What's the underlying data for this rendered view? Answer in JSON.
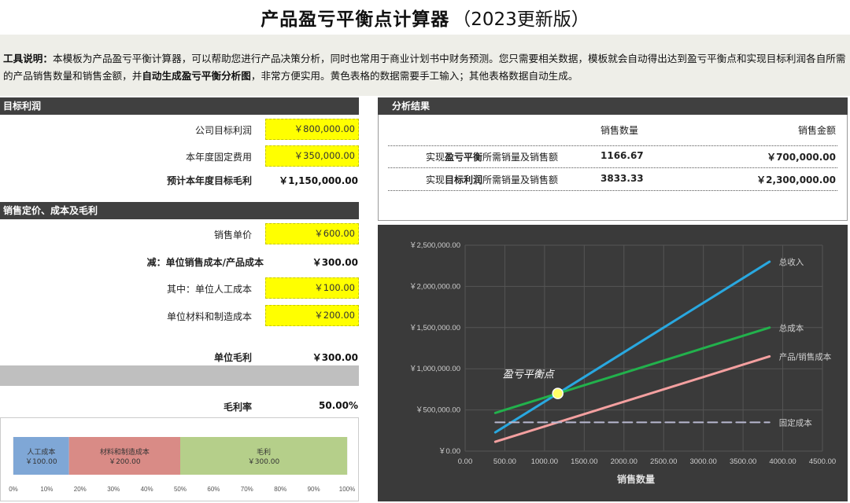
{
  "header": {
    "title_main": "产品盈亏平衡点计算器",
    "title_sub": "（2023更新版）"
  },
  "description": {
    "label": "工具说明：",
    "text1": "本模板为产品盈亏平衡计算器，可以帮助您进行产品决策分析，同时也常用于商业计划书中财务预测。您只需要相关数据，模板就会自动得出达到盈亏平衡点和实现目标利润各自所需的产品销售数量和销售金额，并",
    "emph": "自动生成盈亏平衡分析图",
    "text2": "，非常方便实用。黄色表格的数据需要手工输入；其他表格数据自动生成。"
  },
  "target_profit": {
    "header": "目标利润",
    "company_target_label": "公司目标利润",
    "company_target_value": "￥800,000.00",
    "fixed_cost_label": "本年度固定费用",
    "fixed_cost_value": "￥350,000.00",
    "gross_target_label": "预计本年度目标毛利",
    "gross_target_value": "￥1,150,000.00"
  },
  "pricing": {
    "header": "销售定价、成本及毛利",
    "price_label": "销售单价",
    "price_value": "￥600.00",
    "unit_cost_label": "减：单位销售成本/产品成本",
    "unit_cost_value": "￥300.00",
    "labor_label": "其中：单位人工成本",
    "labor_value": "￥100.00",
    "material_label": "单位材料和制造成本",
    "material_value": "￥200.00",
    "unit_margin_label": "单位毛利",
    "unit_margin_value": "￥300.00",
    "margin_rate_label": "毛利率",
    "margin_rate_value": "50.00%"
  },
  "results": {
    "header": "分析结果",
    "col_qty": "销售数量",
    "col_amount": "销售金额",
    "rows": [
      {
        "label_pre": "实现",
        "label_emph": "盈亏平衡",
        "label_post": "所需销量及销售额",
        "qty": "1166.67",
        "amount": "￥700,000.00"
      },
      {
        "label_pre": "实现",
        "label_emph": "目标利润",
        "label_post": "所需销量及销售额",
        "qty": "3833.33",
        "amount": "￥2,300,000.00"
      }
    ]
  },
  "chart_data": [
    {
      "type": "line",
      "title": "",
      "xlabel": "销售数量",
      "ylabel": "",
      "xlim": [
        0,
        4500
      ],
      "ylim": [
        0,
        2500000
      ],
      "x_ticks": [
        "0.00",
        "500.00",
        "1000.00",
        "1500.00",
        "2000.00",
        "2500.00",
        "3000.00",
        "3500.00",
        "4000.00",
        "4500.00"
      ],
      "y_ticks": [
        "￥0.00",
        "￥500,000.00",
        "￥1,000,000.00",
        "￥1,500,000.00",
        "￥2,000,000.00",
        "￥2,500,000.00"
      ],
      "grid": true,
      "series": [
        {
          "name": "总收入",
          "color": "#29a8e0",
          "points": [
            [
              380,
              228000
            ],
            [
              3833.33,
              2300000
            ]
          ]
        },
        {
          "name": "总成本",
          "color": "#22b14c",
          "points": [
            [
              380,
              464000
            ],
            [
              3833.33,
              1500000
            ]
          ]
        },
        {
          "name": "产品/销售成本",
          "color": "#f4a0a0",
          "points": [
            [
              380,
              114000
            ],
            [
              3833.33,
              1150000
            ]
          ]
        },
        {
          "name": "固定成本",
          "color": "#b8b8d0",
          "dashed": true,
          "points": [
            [
              380,
              350000
            ],
            [
              3833.33,
              350000
            ]
          ]
        }
      ],
      "annotation": {
        "label": "盈亏平衡点",
        "x": 1166.67,
        "y": 700000
      }
    },
    {
      "type": "bar",
      "title": "",
      "orientation": "horizontal-stacked",
      "xlim": [
        0,
        100
      ],
      "x_ticks": [
        "0%",
        "10%",
        "20%",
        "30%",
        "40%",
        "50%",
        "60%",
        "70%",
        "80%",
        "90%",
        "100%"
      ],
      "segments": [
        {
          "name": "人工成本",
          "value_label": "￥100.00",
          "percent": 16.67,
          "color": "#7fa7d6"
        },
        {
          "name": "材料和制造成本",
          "value_label": "￥200.00",
          "percent": 33.33,
          "color": "#d98b86"
        },
        {
          "name": "毛利",
          "value_label": "￥300.00",
          "percent": 50.0,
          "color": "#b5cf8a"
        }
      ]
    }
  ]
}
